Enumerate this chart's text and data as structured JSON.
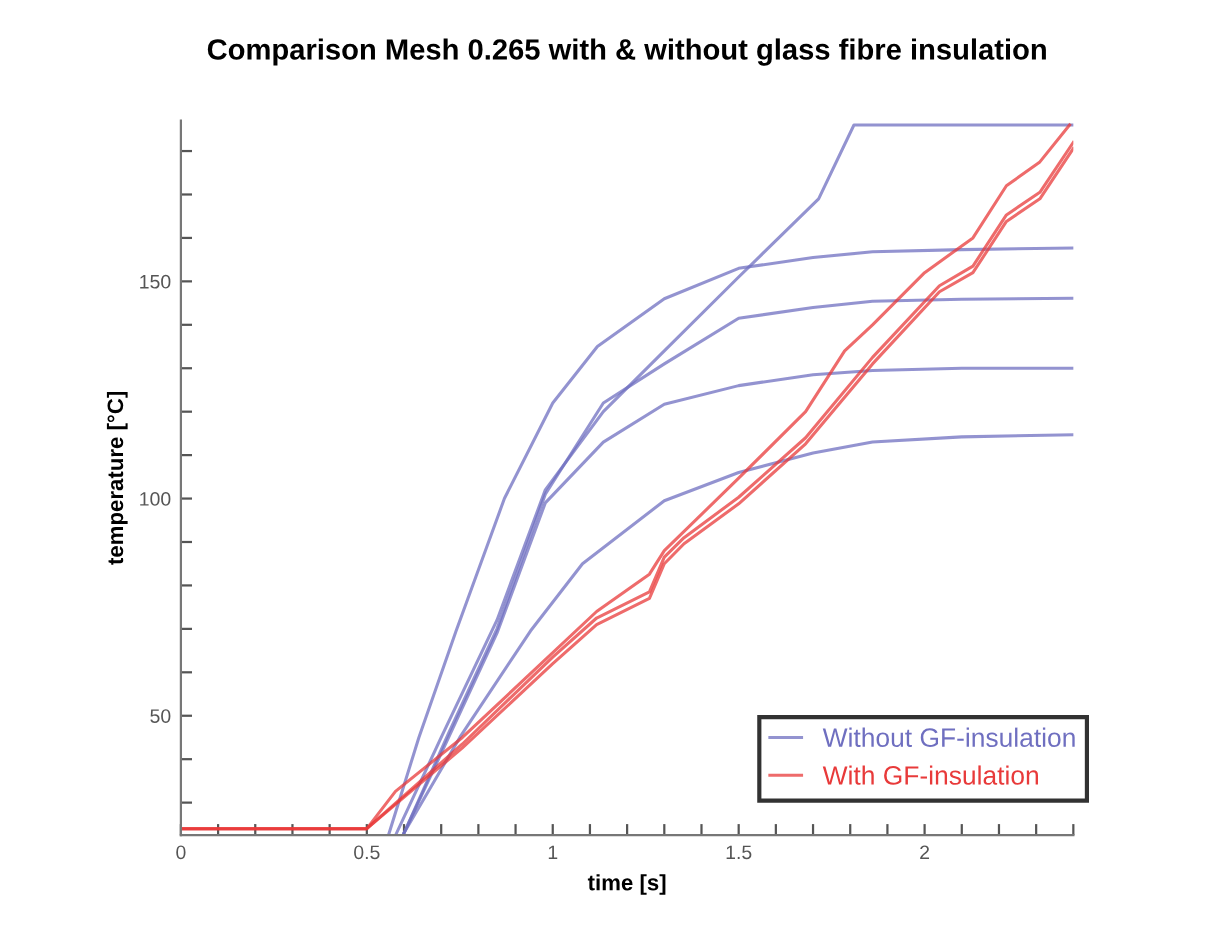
{
  "chart_data": {
    "type": "line",
    "title": "Comparison Mesh 0.265 with & without glass fibre insulation",
    "xlabel": "time [s]",
    "ylabel": "temperature [°C]",
    "xlim": [
      0,
      2.4
    ],
    "ylim": [
      22.5,
      187
    ],
    "xticks": [
      0,
      {
        "value": 0.1,
        "label": null
      },
      {
        "value": 0.2,
        "label": null
      },
      {
        "value": 0.3,
        "label": null
      },
      {
        "value": 0.4,
        "label": null
      },
      0.5,
      {
        "value": 0.6,
        "label": null
      },
      {
        "value": 0.7,
        "label": null
      },
      {
        "value": 0.8,
        "label": null
      },
      {
        "value": 0.9,
        "label": null
      },
      1,
      {
        "value": 1.1,
        "label": null
      },
      {
        "value": 1.2,
        "label": null
      },
      {
        "value": 1.3,
        "label": null
      },
      {
        "value": 1.4,
        "label": null
      },
      1.5,
      {
        "value": 1.6,
        "label": null
      },
      {
        "value": 1.7,
        "label": null
      },
      {
        "value": 1.8,
        "label": null
      },
      {
        "value": 1.9,
        "label": null
      },
      2,
      {
        "value": 2.1,
        "label": null
      },
      {
        "value": 2.2,
        "label": null
      },
      {
        "value": 2.3,
        "label": null
      },
      {
        "value": 2.4,
        "label": null
      }
    ],
    "yticks": [
      {
        "value": 30,
        "label": null
      },
      {
        "value": 40,
        "label": null
      },
      50,
      {
        "value": 60,
        "label": null
      },
      {
        "value": 70,
        "label": null
      },
      {
        "value": 80,
        "label": null
      },
      {
        "value": 90,
        "label": null
      },
      100,
      {
        "value": 110,
        "label": null
      },
      {
        "value": 120,
        "label": null
      },
      {
        "value": 130,
        "label": null
      },
      {
        "value": 140,
        "label": null
      },
      150,
      {
        "value": 160,
        "label": null
      },
      {
        "value": 170,
        "label": null
      },
      {
        "value": 180,
        "label": null
      }
    ],
    "grid": false,
    "legend": "bottom right",
    "marker": "none",
    "line_style": "solid",
    "series": [
      {
        "name": "Without GF-insulation",
        "color": "#6f6fc0",
        "x": [
          0.58,
          0.7,
          0.85,
          0.98,
          1.136,
          1.3,
          1.5,
          1.715,
          1.81,
          2.4
        ],
        "values": [
          23,
          45,
          72,
          102,
          120,
          134,
          151,
          169,
          186,
          186
        ]
      },
      {
        "color": "#6f6fc0",
        "x": [
          0.56,
          0.64,
          0.74,
          0.87,
          1.0,
          1.12,
          1.3,
          1.5,
          1.7,
          1.86,
          2.1,
          2.4
        ],
        "values": [
          23,
          45,
          69.5,
          100,
          122,
          135,
          146,
          153,
          155.5,
          156.8,
          157.3,
          157.7
        ]
      },
      {
        "color": "#6f6fc0",
        "x": [
          0.6,
          0.72,
          0.85,
          0.98,
          1.136,
          1.3,
          1.5,
          1.7,
          1.86,
          2.1,
          2.4
        ],
        "values": [
          23,
          46,
          70,
          101,
          122,
          131,
          141.5,
          144,
          145.4,
          145.9,
          146.1
        ]
      },
      {
        "color": "#6f6fc0",
        "x": [
          0.6,
          0.72,
          0.85,
          0.98,
          1.136,
          1.3,
          1.5,
          1.7,
          1.86,
          2.1,
          2.4
        ],
        "values": [
          23,
          45,
          69,
          99,
          113,
          121.7,
          126,
          128.5,
          129.5,
          130,
          130
        ]
      },
      {
        "color": "#6f6fc0",
        "x": [
          0.6,
          0.75,
          0.94,
          1.08,
          1.3,
          1.5,
          1.7,
          1.86,
          2.1,
          2.4
        ],
        "values": [
          23,
          45,
          69.5,
          85,
          99.5,
          106,
          110.5,
          113,
          114.2,
          114.7
        ]
      },
      {
        "name": "With GF-insulation",
        "color": "#e83a3a",
        "x": [
          0,
          0.5,
          0.577,
          0.757,
          1.118,
          1.26,
          1.3,
          1.5,
          1.68,
          1.785,
          1.86,
          2.0,
          2.13,
          2.22,
          2.31,
          2.39
        ],
        "values": [
          24,
          24,
          32.6,
          45,
          74,
          82.6,
          88,
          104.7,
          120,
          134,
          140,
          152,
          160,
          172,
          177.5,
          186
        ]
      },
      {
        "color": "#e83a3a",
        "x": [
          0,
          0.5,
          0.757,
          1.0,
          1.118,
          1.26,
          1.3,
          1.353,
          1.5,
          1.68,
          1.86,
          2.04,
          2.13,
          2.22,
          2.31,
          2.4
        ],
        "values": [
          24,
          24,
          42.6,
          62,
          71,
          77,
          85,
          89.6,
          98.8,
          112.6,
          131,
          147.6,
          152,
          163.8,
          169,
          180.6
        ]
      },
      {
        "color": "#e83a3a",
        "x": [
          0,
          0.5,
          0.757,
          1.0,
          1.118,
          1.26,
          1.3,
          1.353,
          1.5,
          1.68,
          1.86,
          2.04,
          2.13,
          2.22,
          2.31,
          2.4
        ],
        "values": [
          24,
          24,
          43.5,
          63.5,
          72.5,
          78.5,
          86.5,
          91,
          100.3,
          114,
          132.5,
          149,
          153.5,
          165.3,
          170.5,
          182
        ]
      }
    ]
  }
}
